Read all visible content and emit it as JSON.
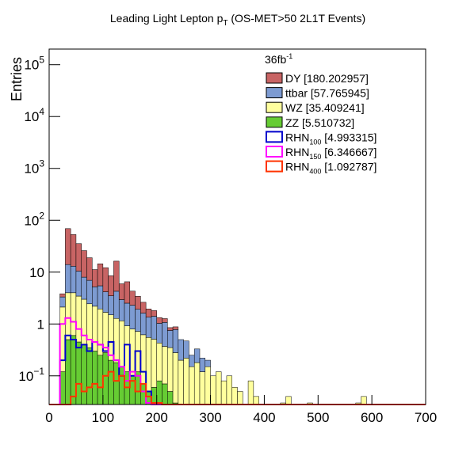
{
  "chart_data": {
    "type": "stacked_histogram",
    "title": "Leading Light Lepton p",
    "title_sub": "T",
    "title_end": " (OS-MET>50 2L1T Events)",
    "ylabel": "Entries",
    "lumi": "36fb",
    "lumi_sup": "-1",
    "log_y": true,
    "xlim": [
      0,
      700
    ],
    "xticks": [
      0,
      100,
      200,
      300,
      400,
      500,
      600,
      700
    ],
    "ylim": [
      0.028,
      200000
    ],
    "yticks": [
      {
        "value": 0.1,
        "label": "10",
        "exponent": "−1"
      },
      1,
      10,
      {
        "value": 100,
        "label": "10",
        "exponent": "2"
      },
      {
        "value": 1000,
        "label": "10",
        "exponent": "3"
      },
      {
        "value": 10000,
        "label": "10",
        "exponent": "4"
      },
      {
        "value": 100000,
        "label": "10",
        "exponent": "5"
      }
    ],
    "bins": [
      0,
      10,
      20,
      30,
      40,
      50,
      60,
      70,
      80,
      90,
      100,
      110,
      120,
      130,
      140,
      150,
      160,
      170,
      180,
      190,
      200,
      210,
      220,
      230,
      240,
      250,
      260,
      270,
      280,
      290,
      300,
      310,
      320,
      330,
      340,
      350,
      360,
      370,
      380,
      390,
      400,
      410,
      420,
      430,
      440,
      450,
      460,
      470,
      480,
      490,
      500,
      510,
      520,
      530,
      540,
      550,
      560,
      570,
      580,
      590,
      600,
      610,
      620,
      630,
      640,
      650,
      660,
      670,
      680,
      690,
      700
    ],
    "series": [
      {
        "name": "DY [180.202957]",
        "color": "#c86464",
        "stacked": true,
        "values": [
          0,
          0,
          0.5,
          55,
          40,
          25,
          18,
          12,
          6,
          9,
          8,
          5,
          12,
          3,
          4,
          2,
          1.5,
          1,
          0.6,
          0.4,
          0.3,
          0.2,
          0.1,
          0.1,
          0,
          0,
          0,
          0,
          0,
          0,
          0,
          0,
          0,
          0,
          0,
          0,
          0,
          0,
          0,
          0,
          0,
          0,
          0,
          0,
          0,
          0,
          0,
          0,
          0,
          0,
          0,
          0,
          0,
          0,
          0,
          0,
          0,
          0,
          0,
          0,
          0,
          0,
          0,
          0,
          0,
          0,
          0,
          0,
          0,
          0
        ]
      },
      {
        "name": "ttbar [57.765945]",
        "color": "#7d9bd2",
        "stacked": true,
        "values": [
          0,
          0,
          1.2,
          10,
          9,
          7,
          5,
          4.5,
          3,
          3.5,
          2.5,
          2,
          3,
          1.8,
          1.6,
          1.5,
          1.2,
          1,
          0.8,
          0.9,
          0.6,
          0.7,
          0.4,
          0.5,
          0.3,
          0.25,
          0.1,
          0.15,
          0.1,
          0.05,
          0,
          0,
          0,
          0,
          0,
          0,
          0,
          0,
          0,
          0,
          0,
          0,
          0,
          0,
          0,
          0,
          0,
          0,
          0,
          0,
          0,
          0,
          0,
          0,
          0,
          0,
          0,
          0,
          0,
          0,
          0,
          0,
          0,
          0,
          0,
          0,
          0,
          0,
          0,
          0
        ]
      },
      {
        "name": "WZ [35.409241]",
        "color": "#ffff9e",
        "stacked": true,
        "values": [
          0,
          0,
          2,
          3.5,
          3.4,
          3,
          2.6,
          2.1,
          1.9,
          1.7,
          1.4,
          1.3,
          1.1,
          1,
          0.8,
          0.7,
          0.6,
          0.55,
          0.5,
          0.45,
          0.35,
          0.3,
          0.3,
          0.25,
          0.2,
          0.22,
          0.15,
          0.18,
          0.12,
          0.15,
          0.1,
          0.12,
          0.08,
          0.1,
          0.06,
          0.05,
          0,
          0.08,
          0.04,
          0,
          0,
          0,
          0,
          0.03,
          0.04,
          0,
          0,
          0,
          0.03,
          0,
          0,
          0,
          0,
          0,
          0,
          0,
          0,
          0.03,
          0.04,
          0,
          0,
          0,
          0,
          0,
          0,
          0,
          0,
          0,
          0,
          0
        ]
      },
      {
        "name": "ZZ [5.510732]",
        "color": "#66cc33",
        "stacked": true,
        "values": [
          0,
          0,
          0.12,
          0.5,
          0.6,
          0.45,
          0.4,
          0.35,
          0.3,
          0.25,
          0.28,
          0.2,
          0.18,
          0.15,
          0.12,
          0.1,
          0.12,
          0.07,
          0.05,
          0.06,
          0.08,
          0.07,
          0.05,
          0.03,
          0,
          0,
          0,
          0,
          0,
          0,
          0,
          0,
          0,
          0,
          0,
          0,
          0,
          0,
          0,
          0,
          0,
          0,
          0,
          0,
          0,
          0,
          0,
          0,
          0,
          0,
          0,
          0,
          0,
          0,
          0,
          0,
          0,
          0,
          0,
          0,
          0,
          0,
          0,
          0,
          0,
          0,
          0,
          0,
          0,
          0
        ]
      },
      {
        "name": "RHN",
        "subscript": "100",
        "suffix": " [4.993315]",
        "color": "#0000cc",
        "stacked": false,
        "values": [
          0,
          0,
          0.2,
          0.6,
          0.5,
          0.35,
          0.4,
          0.3,
          0.45,
          0.4,
          0.3,
          0.45,
          0.2,
          0.1,
          0.4,
          0.1,
          0.3,
          0.12,
          0.05,
          0,
          0,
          0,
          0,
          0,
          0,
          0,
          0,
          0,
          0,
          0,
          0,
          0,
          0,
          0,
          0,
          0,
          0,
          0,
          0,
          0,
          0,
          0,
          0,
          0,
          0,
          0,
          0,
          0,
          0,
          0,
          0,
          0,
          0,
          0,
          0,
          0,
          0,
          0,
          0,
          0,
          0,
          0,
          0,
          0,
          0,
          0,
          0,
          0,
          0,
          0
        ]
      },
      {
        "name": "RHN",
        "subscript": "150",
        "suffix": " [6.346667]",
        "color": "#ff00ff",
        "stacked": false,
        "values": [
          0,
          0,
          1,
          1.3,
          1.1,
          0.8,
          0.6,
          0.5,
          0.45,
          0.4,
          0.35,
          0.25,
          0.2,
          0.15,
          0.08,
          0.12,
          0.1,
          0.05,
          0.03,
          0,
          0,
          0,
          0,
          0,
          0,
          0,
          0,
          0,
          0,
          0,
          0,
          0,
          0,
          0,
          0,
          0,
          0,
          0,
          0,
          0,
          0,
          0,
          0,
          0,
          0,
          0,
          0,
          0,
          0,
          0,
          0,
          0,
          0,
          0,
          0,
          0,
          0,
          0,
          0,
          0,
          0,
          0,
          0,
          0,
          0,
          0,
          0,
          0,
          0,
          0
        ]
      },
      {
        "name": "RHN",
        "subscript": "400",
        "suffix": " [1.092787]",
        "color": "#ff3300",
        "stacked": false,
        "values": [
          0,
          0,
          0,
          0,
          0.04,
          0.07,
          0.05,
          0.06,
          0.07,
          0.06,
          0.1,
          0.12,
          0.08,
          0.1,
          0.06,
          0.08,
          0.05,
          0.07,
          0.04,
          0.03,
          0.03,
          0,
          0,
          0,
          0,
          0,
          0,
          0,
          0,
          0,
          0,
          0,
          0,
          0,
          0,
          0,
          0,
          0,
          0,
          0,
          0,
          0,
          0,
          0,
          0,
          0,
          0,
          0,
          0,
          0,
          0,
          0,
          0,
          0,
          0,
          0,
          0,
          0,
          0,
          0,
          0,
          0,
          0,
          0,
          0,
          0,
          0,
          0,
          0,
          0
        ]
      }
    ]
  }
}
